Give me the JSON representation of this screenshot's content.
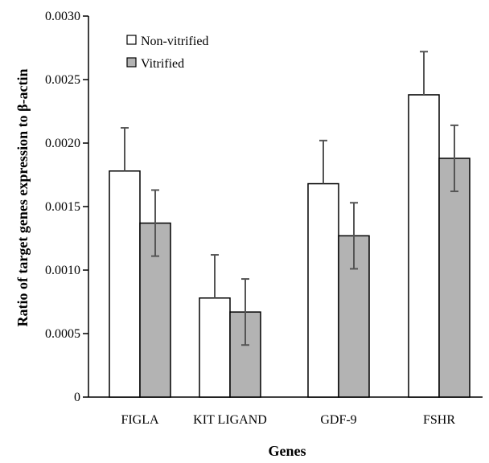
{
  "chart_data": {
    "type": "bar",
    "title": "",
    "xlabel": "Genes",
    "ylabel": "Ratio of target genes expression to β-actin",
    "categories": [
      "FIGLA",
      "KIT LIGAND",
      "GDF-9",
      "FSHR"
    ],
    "ylim": [
      0,
      0.003
    ],
    "yticks": [
      "0",
      "0.0005",
      "0.0010",
      "0.0015",
      "0.0020",
      "0.0025",
      "0.0030"
    ],
    "legend_position": "top-left",
    "grid": false,
    "series": [
      {
        "name": "Non-vitrified",
        "color": "#ffffff",
        "values": [
          0.00178,
          0.00078,
          0.00168,
          0.00238
        ],
        "errors": [
          0.00034,
          0.00034,
          0.00034,
          0.00034
        ]
      },
      {
        "name": "Vitrified",
        "color": "#b3b3b3",
        "values": [
          0.00137,
          0.00067,
          0.00127,
          0.00188
        ],
        "errors": [
          0.00026,
          0.00026,
          0.00026,
          0.00026
        ]
      }
    ]
  }
}
